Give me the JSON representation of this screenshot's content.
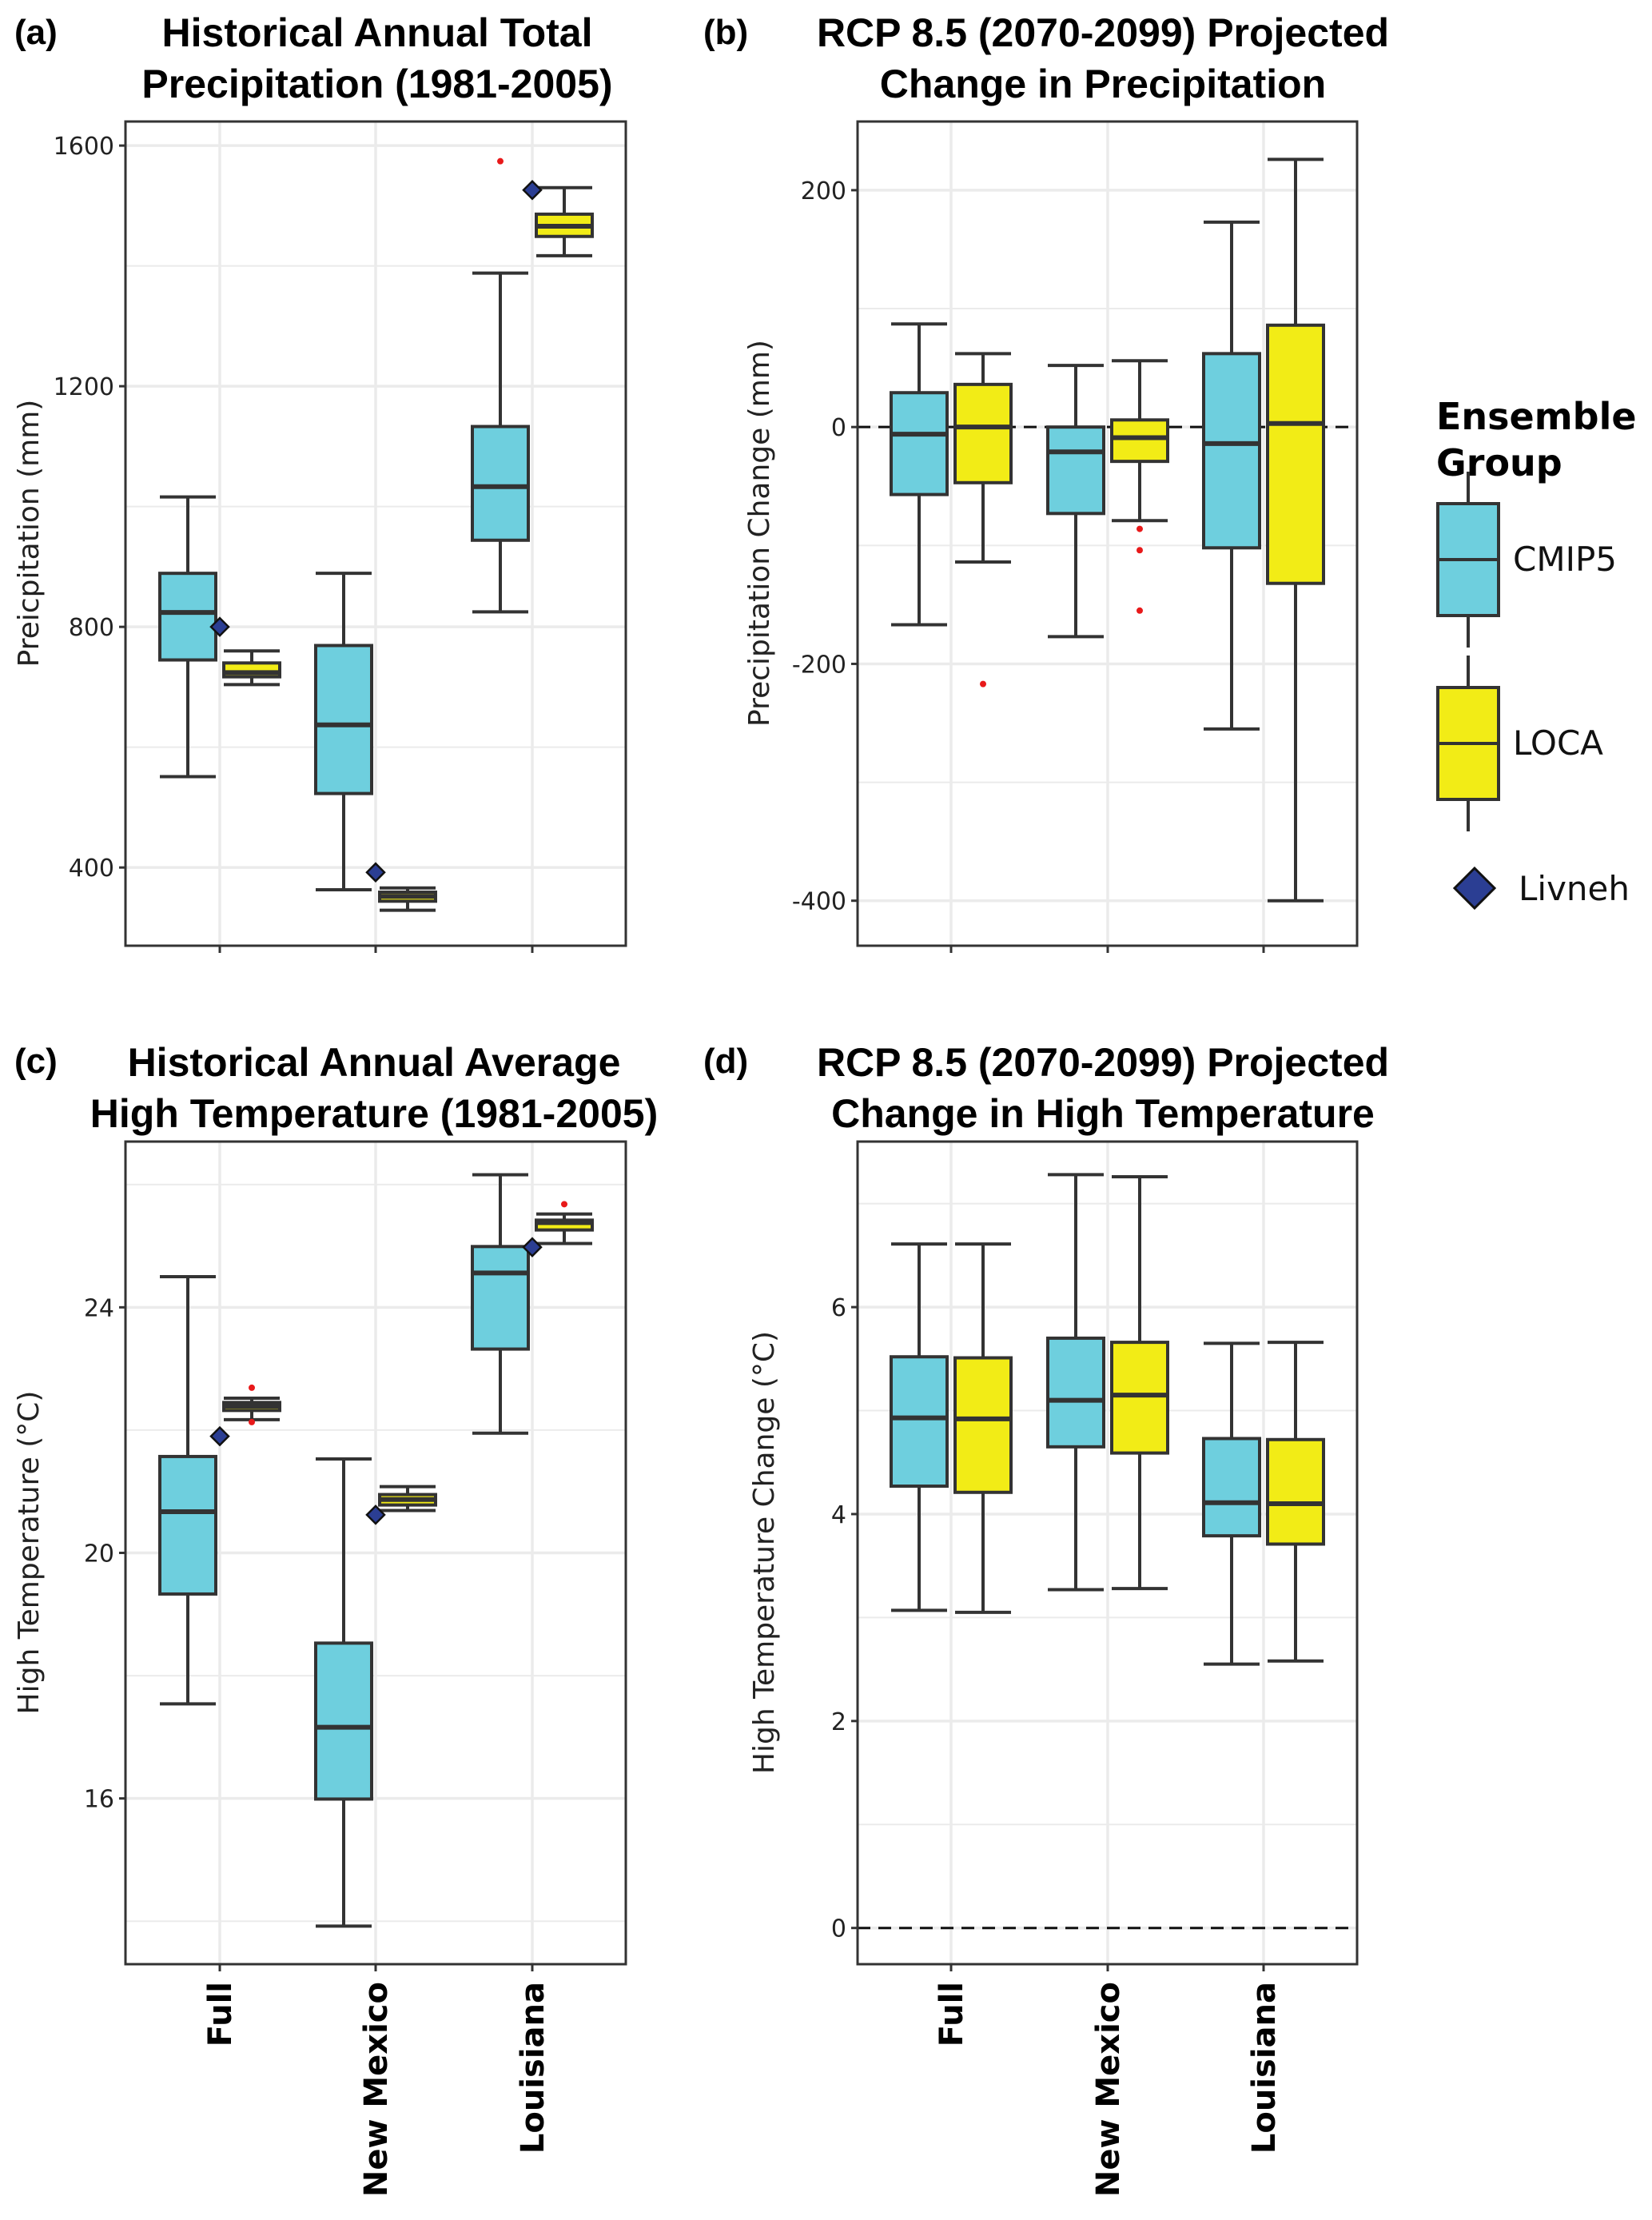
{
  "colors": {
    "CMIP5": "#6ecfde",
    "LOCA": "#f2ec16",
    "Livneh": "#2b3e93",
    "outlier": "#e8191a",
    "box_stroke": "#333333",
    "grid": "#ebebeb",
    "frame": "#333333"
  },
  "legend": {
    "title_line1": "Ensemble",
    "title_line2": "Group",
    "items": [
      {
        "name": "CMIP5",
        "type": "box"
      },
      {
        "name": "LOCA",
        "type": "box"
      },
      {
        "name": "Livneh",
        "type": "diamond"
      }
    ]
  },
  "chart_data": [
    {
      "id": "a",
      "type": "box",
      "panel_letter": "(a)",
      "title_line1": "Historical Annual Total",
      "title_line2": "Precipitation (1981-2005)",
      "xlabel": "",
      "ylabel": "Preicpitation (mm)",
      "ylim": [
        270,
        1640
      ],
      "yticks": [
        400,
        800,
        1200,
        1600
      ],
      "yminor": [
        600,
        1000,
        1400
      ],
      "categories": [
        "Full",
        "New Mexico",
        "Louisiana"
      ],
      "show_category_labels": false,
      "reference_line": null,
      "series": [
        {
          "name": "CMIP5",
          "boxes": [
            {
              "whisker_low": 551,
              "q1": 745,
              "median": 824,
              "q3": 889,
              "whisker_high": 1016,
              "outliers": []
            },
            {
              "whisker_low": 363,
              "q1": 523,
              "median": 637,
              "q3": 769,
              "whisker_high": 889,
              "outliers": []
            },
            {
              "whisker_low": 825,
              "q1": 944,
              "median": 1033,
              "q3": 1133,
              "whisker_high": 1388,
              "outliers": [
                1574
              ]
            }
          ]
        },
        {
          "name": "LOCA",
          "boxes": [
            {
              "whisker_low": 704,
              "q1": 717,
              "median": 724,
              "q3": 740,
              "whisker_high": 760,
              "outliers": []
            },
            {
              "whisker_low": 329,
              "q1": 344,
              "median": 352,
              "q3": 359,
              "whisker_high": 366,
              "outliers": []
            },
            {
              "whisker_low": 1417,
              "q1": 1449,
              "median": 1466,
              "q3": 1486,
              "whisker_high": 1530,
              "outliers": []
            }
          ]
        }
      ],
      "livneh": [
        800,
        392,
        1526
      ]
    },
    {
      "id": "b",
      "type": "box",
      "panel_letter": "(b)",
      "title_line1": "RCP 8.5 (2070-2099) Projected",
      "title_line2": "Change in Precipitation",
      "xlabel": "",
      "ylabel": "Precipitation Change (mm)",
      "ylim": [
        -438,
        258
      ],
      "yticks": [
        -400,
        -200,
        0,
        200
      ],
      "yminor": [
        -300,
        -100,
        100
      ],
      "categories": [
        "Full",
        "New Mexico",
        "Louisiana"
      ],
      "show_category_labels": false,
      "reference_line": 0,
      "series": [
        {
          "name": "CMIP5",
          "boxes": [
            {
              "whisker_low": -167,
              "q1": -57,
              "median": -6,
              "q3": 29,
              "whisker_high": 87,
              "outliers": []
            },
            {
              "whisker_low": -177,
              "q1": -73,
              "median": -21,
              "q3": 0,
              "whisker_high": 52,
              "outliers": []
            },
            {
              "whisker_low": -255,
              "q1": -102,
              "median": -14,
              "q3": 62,
              "whisker_high": 173,
              "outliers": []
            }
          ]
        },
        {
          "name": "LOCA",
          "boxes": [
            {
              "whisker_low": -114,
              "q1": -47,
              "median": 0,
              "q3": 36,
              "whisker_high": 62,
              "outliers": [
                -217
              ]
            },
            {
              "whisker_low": -79,
              "q1": -29,
              "median": -9,
              "q3": 6,
              "whisker_high": 56,
              "outliers": [
                -86,
                -104,
                -155
              ]
            },
            {
              "whisker_low": -400,
              "q1": -132,
              "median": 3,
              "q3": 86,
              "whisker_high": 226,
              "outliers": []
            }
          ]
        }
      ],
      "livneh": null
    },
    {
      "id": "c",
      "type": "box",
      "panel_letter": "(c)",
      "title_line1": "Historical Annual Average",
      "title_line2": "High Temperature (1981-2005)",
      "xlabel": "",
      "ylabel": "High Temperature (°C)",
      "ylim": [
        13.3,
        26.7
      ],
      "yticks": [
        16,
        20,
        24
      ],
      "yminor": [
        14,
        18,
        22,
        26
      ],
      "categories": [
        "Full",
        "New Mexico",
        "Louisiana"
      ],
      "show_category_labels": true,
      "reference_line": null,
      "series": [
        {
          "name": "CMIP5",
          "boxes": [
            {
              "whisker_low": 17.54,
              "q1": 19.33,
              "median": 20.67,
              "q3": 21.57,
              "whisker_high": 24.5,
              "outliers": []
            },
            {
              "whisker_low": 13.92,
              "q1": 15.99,
              "median": 17.16,
              "q3": 18.53,
              "whisker_high": 21.53,
              "outliers": []
            },
            {
              "whisker_low": 21.95,
              "q1": 23.32,
              "median": 24.56,
              "q3": 24.99,
              "whisker_high": 26.16,
              "outliers": []
            }
          ]
        },
        {
          "name": "LOCA",
          "boxes": [
            {
              "whisker_low": 22.17,
              "q1": 22.32,
              "median": 22.39,
              "q3": 22.45,
              "whisker_high": 22.52,
              "outliers": [
                22.69,
                22.13
              ]
            },
            {
              "whisker_low": 20.69,
              "q1": 20.78,
              "median": 20.87,
              "q3": 20.95,
              "whisker_high": 21.08,
              "outliers": []
            },
            {
              "whisker_low": 25.04,
              "q1": 25.26,
              "median": 25.38,
              "q3": 25.42,
              "whisker_high": 25.52,
              "outliers": [
                25.68
              ]
            }
          ]
        }
      ],
      "livneh": [
        21.9,
        20.62,
        24.98
      ]
    },
    {
      "id": "d",
      "type": "box",
      "panel_letter": "(d)",
      "title_line1": "RCP 8.5 (2070-2099) Projected",
      "title_line2": "Change in High Temperature",
      "xlabel": "",
      "ylabel": "High Temperature Change (°C)",
      "ylim": [
        -0.35,
        7.6
      ],
      "yticks": [
        0,
        2,
        4,
        6
      ],
      "yminor": [
        1,
        3,
        5,
        7
      ],
      "categories": [
        "Full",
        "New Mexico",
        "Louisiana"
      ],
      "show_category_labels": true,
      "reference_line": 0,
      "series": [
        {
          "name": "CMIP5",
          "boxes": [
            {
              "whisker_low": 3.07,
              "q1": 4.27,
              "median": 4.93,
              "q3": 5.52,
              "whisker_high": 6.61,
              "outliers": []
            },
            {
              "whisker_low": 3.27,
              "q1": 4.65,
              "median": 5.1,
              "q3": 5.7,
              "whisker_high": 7.28,
              "outliers": []
            },
            {
              "whisker_low": 2.55,
              "q1": 3.79,
              "median": 4.11,
              "q3": 4.73,
              "whisker_high": 5.65,
              "outliers": []
            }
          ]
        },
        {
          "name": "LOCA",
          "boxes": [
            {
              "whisker_low": 3.05,
              "q1": 4.21,
              "median": 4.92,
              "q3": 5.51,
              "whisker_high": 6.61,
              "outliers": []
            },
            {
              "whisker_low": 3.28,
              "q1": 4.59,
              "median": 5.15,
              "q3": 5.66,
              "whisker_high": 7.26,
              "outliers": []
            },
            {
              "whisker_low": 2.58,
              "q1": 3.71,
              "median": 4.1,
              "q3": 4.72,
              "whisker_high": 5.66,
              "outliers": []
            }
          ]
        }
      ],
      "livneh": null
    }
  ]
}
